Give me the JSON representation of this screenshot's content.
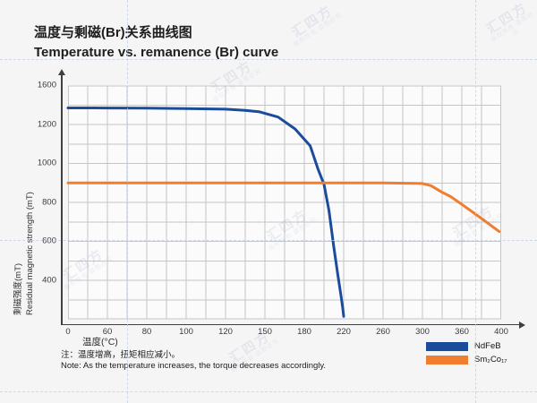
{
  "titles": {
    "zh": "温度与剩磁(Br)关系曲线图",
    "en": "Temperature vs. remanence (Br) curve"
  },
  "axes": {
    "y_label_zh": "剩磁强度(mT)",
    "y_label_en": "Residual magnetic strength (mT)",
    "x_label_zh": "温度(°C)"
  },
  "notes": {
    "zh": "注：温度增高，扭矩相应减小。",
    "en": "Note: As the temperature increases, the torque decreases accordingly."
  },
  "legend": [
    {
      "label": "NdFeB",
      "color": "#1b4c9c"
    },
    {
      "label": "Sm₂Co₁₇",
      "color": "#f07e2e"
    }
  ],
  "watermark": {
    "logo": "汇四方",
    "slogan": "版权所有 盗图必究"
  },
  "colors": {
    "ndfeb_line": "#1b4c9c",
    "smco_line": "#f07e2e",
    "grid": "#c6c6c6",
    "axis": "#3f3f3f",
    "background": "#f5f5f6",
    "plot_background": "#fbfbfc"
  },
  "chart_data": {
    "type": "line",
    "title": "温度与剩磁(Br)关系曲线图 / Temperature vs. remanence (Br) curve",
    "xlabel": "温度(°C)",
    "ylabel": "剩磁强度(mT) / Residual magnetic strength (mT)",
    "grid": true,
    "legend_position": "bottom-right",
    "axis_note": "Both axes use non-uniform tick values at even spacing, one minor gridline between each labeled tick",
    "x_tick_labels": [
      0,
      60,
      80,
      100,
      120,
      150,
      180,
      220,
      260,
      300,
      360,
      400
    ],
    "y_tick_labels": [
      1600,
      1200,
      1000,
      800,
      600,
      400
    ],
    "y_bottom_value": 200,
    "series": [
      {
        "name": "NdFeB",
        "color": "#1b4c9c",
        "points": [
          [
            0,
            1370
          ],
          [
            40,
            1370
          ],
          [
            60,
            1369
          ],
          [
            80,
            1367
          ],
          [
            100,
            1363
          ],
          [
            120,
            1357
          ],
          [
            135,
            1345
          ],
          [
            146,
            1330
          ],
          [
            160,
            1276
          ],
          [
            173,
            1177
          ],
          [
            186,
            1090
          ],
          [
            194,
            970
          ],
          [
            200,
            893
          ],
          [
            205,
            760
          ],
          [
            210,
            570
          ],
          [
            214,
            430
          ],
          [
            217,
            330
          ],
          [
            219,
            260
          ],
          [
            220,
            215
          ]
        ]
      },
      {
        "name": "Sm₂Co₁₇",
        "color": "#f07e2e",
        "points": [
          [
            0,
            900
          ],
          [
            60,
            900
          ],
          [
            80,
            900
          ],
          [
            100,
            900
          ],
          [
            120,
            900
          ],
          [
            150,
            900
          ],
          [
            180,
            900
          ],
          [
            220,
            900
          ],
          [
            260,
            900
          ],
          [
            300,
            897
          ],
          [
            313,
            886
          ],
          [
            330,
            852
          ],
          [
            343,
            830
          ],
          [
            360,
            790
          ],
          [
            373,
            743
          ],
          [
            386,
            695
          ],
          [
            398,
            650
          ]
        ]
      }
    ]
  }
}
